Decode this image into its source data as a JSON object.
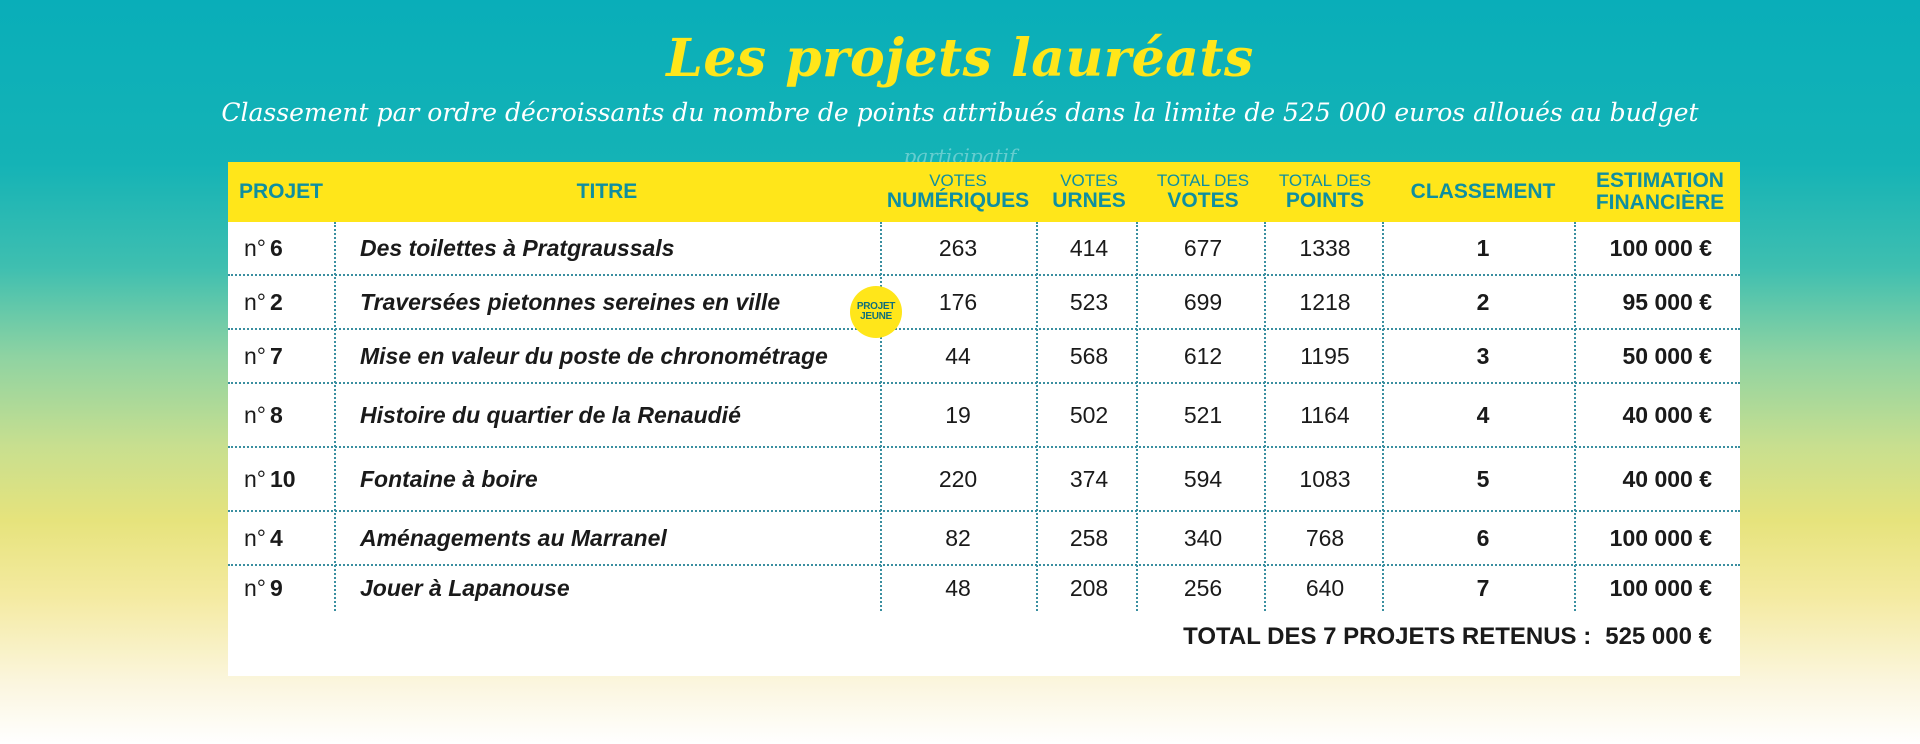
{
  "title": "Les projets lauréats",
  "subtitle": "Classement par ordre décroissants du nombre de points attribués dans la limite de 525 000 euros alloués au budget",
  "subtitle_ghost": "participatif",
  "headers": {
    "projet": "PROJET",
    "titre": "TITRE",
    "votes_num_top": "VOTES",
    "votes_num_bottom": "NUMÉRIQUES",
    "votes_urnes_top": "VOTES",
    "votes_urnes_bottom": "URNES",
    "total_votes_top": "TOTAL DES",
    "total_votes_bottom": "VOTES",
    "total_points_top": "TOTAL DES",
    "total_points_bottom": "POINTS",
    "classement": "CLASSEMENT",
    "estimation_top": "ESTIMATION",
    "estimation_bottom": "FINANCIÈRE"
  },
  "badge": {
    "line1": "PROJET",
    "line2": "JEUNE"
  },
  "rows": [
    {
      "prefix": "n°",
      "num": "6",
      "titre": "Des toilettes à Pratgraussals",
      "num_votes": "263",
      "urnes": "414",
      "total_votes": "677",
      "points": "1338",
      "classement": "1",
      "estimation": "100 000 €"
    },
    {
      "prefix": "n°",
      "num": "2",
      "titre": "Traversées pietonnes sereines en ville",
      "num_votes": "176",
      "urnes": "523",
      "total_votes": "699",
      "points": "1218",
      "classement": "2",
      "estimation": "95 000 €"
    },
    {
      "prefix": "n°",
      "num": "7",
      "titre": "Mise en valeur du poste de chronométrage",
      "num_votes": "44",
      "urnes": "568",
      "total_votes": "612",
      "points": "1195",
      "classement": "3",
      "estimation": "50 000 €"
    },
    {
      "prefix": "n°",
      "num": "8",
      "titre": "Histoire du quartier de la Renaudié",
      "num_votes": "19",
      "urnes": "502",
      "total_votes": "521",
      "points": "1164",
      "classement": "4",
      "estimation": "40 000 €"
    },
    {
      "prefix": "n°",
      "num": "10",
      "titre": "Fontaine à boire",
      "num_votes": "220",
      "urnes": "374",
      "total_votes": "594",
      "points": "1083",
      "classement": "5",
      "estimation": "40 000 €"
    },
    {
      "prefix": "n°",
      "num": "4",
      "titre": "Aménagements au Marranel",
      "num_votes": "82",
      "urnes": "258",
      "total_votes": "340",
      "points": "768",
      "classement": "6",
      "estimation": "100 000 €"
    },
    {
      "prefix": "n°",
      "num": "9",
      "titre": "Jouer à Lapanouse",
      "num_votes": "48",
      "urnes": "208",
      "total_votes": "256",
      "points": "640",
      "classement": "7",
      "estimation": "100 000 €"
    }
  ],
  "total": {
    "label": "TOTAL DES 7 PROJETS RETENUS :",
    "value": "525 000 €"
  },
  "colors": {
    "accent_yellow": "#ffe61a",
    "header_text": "#0f8fa0",
    "teal": "#09aeb9"
  }
}
